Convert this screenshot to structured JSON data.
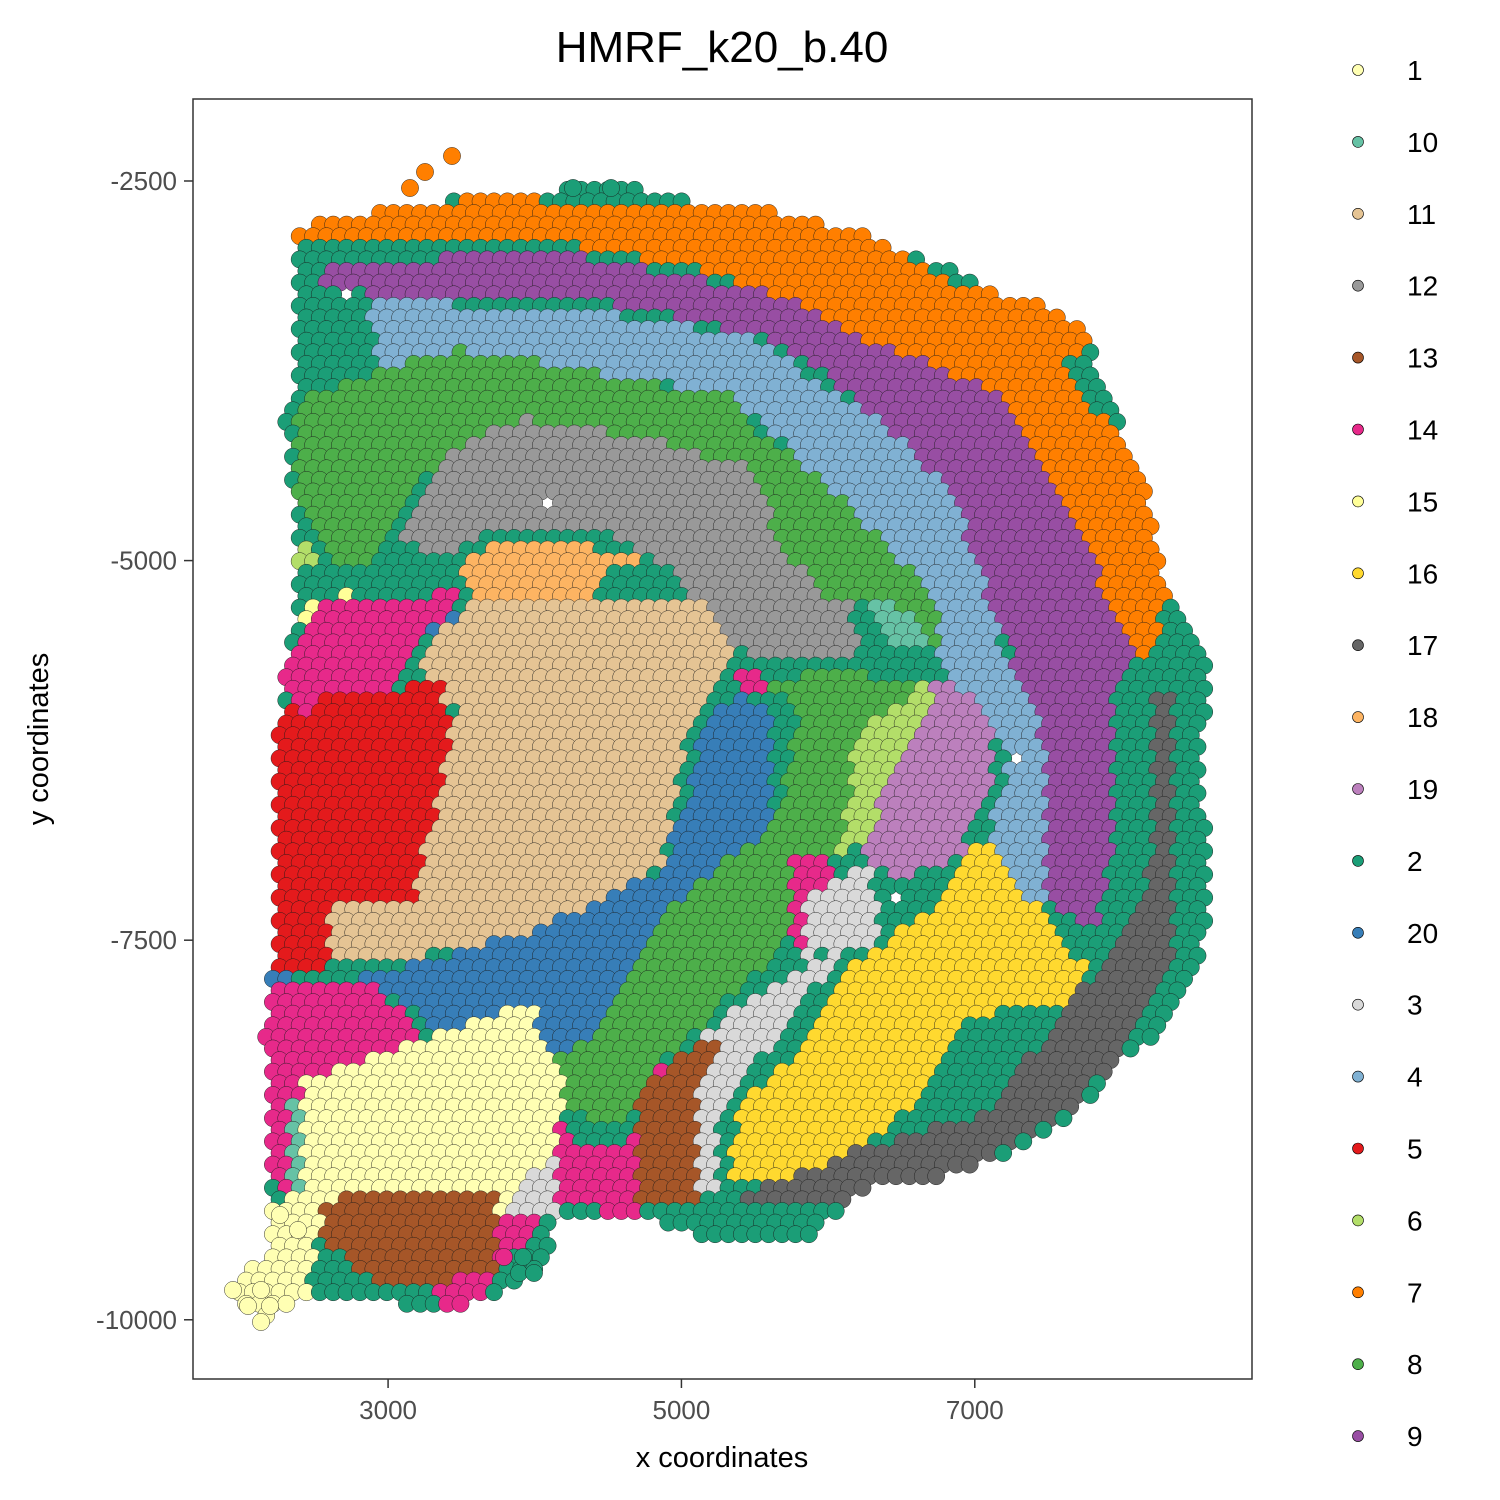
{
  "chart_data": {
    "type": "scatter",
    "title": "HMRF_k20_b.40",
    "xlabel": "x coordinates",
    "ylabel": "y coordinates",
    "xlim": [
      1670,
      8890
    ],
    "ylim": [
      -10390,
      -1960
    ],
    "x_ticks": [
      3000,
      5000,
      7000
    ],
    "x_tick_labels": [
      "3000",
      "5000",
      "7000"
    ],
    "y_ticks": [
      -2500,
      -5000,
      -7500,
      -10000
    ],
    "y_tick_labels": [
      "-2500",
      "-5000",
      "-7500",
      "-10000"
    ],
    "grid": false,
    "legend_position": "right",
    "legend": [
      {
        "label": "1",
        "color": "#FFFFB3"
      },
      {
        "label": "10",
        "color": "#66C2A5"
      },
      {
        "label": "11",
        "color": "#E5C494"
      },
      {
        "label": "12",
        "color": "#999999"
      },
      {
        "label": "13",
        "color": "#A65628"
      },
      {
        "label": "14",
        "color": "#E7298A"
      },
      {
        "label": "15",
        "color": "#FFFF99"
      },
      {
        "label": "16",
        "color": "#FFD92F"
      },
      {
        "label": "17",
        "color": "#666666"
      },
      {
        "label": "18",
        "color": "#FDB462"
      },
      {
        "label": "19",
        "color": "#BC80BD"
      },
      {
        "label": "2",
        "color": "#1B9E77"
      },
      {
        "label": "20",
        "color": "#377EB8"
      },
      {
        "label": "3",
        "color": "#D9D9D9"
      },
      {
        "label": "4",
        "color": "#80B1D3"
      },
      {
        "label": "5",
        "color": "#E41A1C"
      },
      {
        "label": "6",
        "color": "#B3DE69"
      },
      {
        "label": "7",
        "color": "#FF7F00"
      },
      {
        "label": "8",
        "color": "#4DAF4A"
      },
      {
        "label": "9",
        "color": "#984EA3"
      }
    ]
  }
}
